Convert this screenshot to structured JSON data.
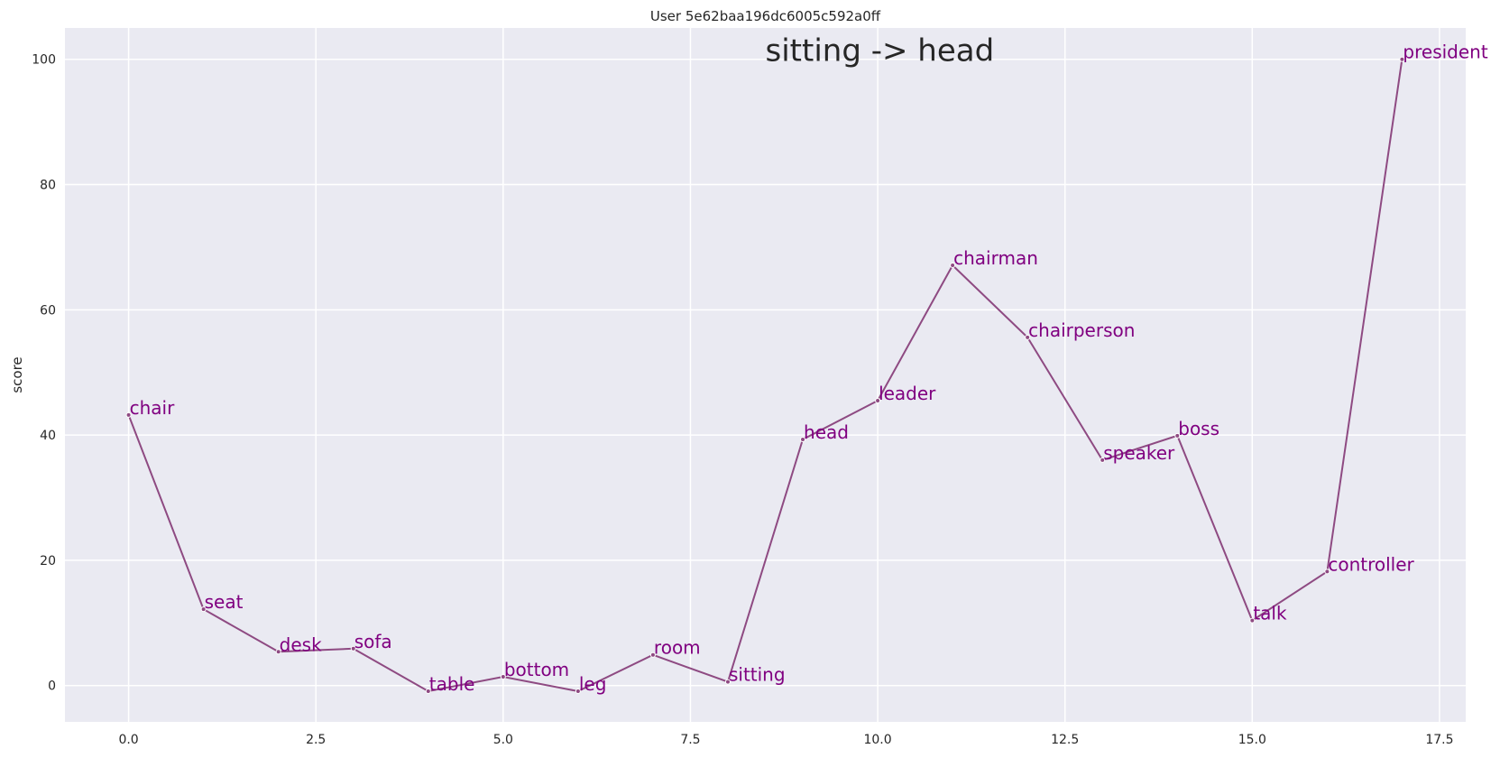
{
  "chart_data": {
    "type": "line",
    "title": "User 5e62baa196dc6005c592a0ff",
    "annotation": "sitting -> head",
    "xlabel": "",
    "ylabel": "score",
    "xlim": [
      -0.85,
      17.85
    ],
    "ylim": [
      -5.8,
      105.0
    ],
    "xticks": [
      0.0,
      2.5,
      5.0,
      7.5,
      10.0,
      12.5,
      15.0,
      17.5
    ],
    "xtick_labels": [
      "0.0",
      "2.5",
      "5.0",
      "7.5",
      "10.0",
      "12.5",
      "15.0",
      "17.5"
    ],
    "yticks": [
      0,
      20,
      40,
      60,
      80,
      100
    ],
    "ytick_labels": [
      "0",
      "20",
      "40",
      "60",
      "80",
      "100"
    ],
    "grid": true,
    "line_color": "#8e4a82",
    "label_color": "#800080",
    "background": "#eaeaf2",
    "points": [
      {
        "x": 0,
        "y": 43.2,
        "label": "chair"
      },
      {
        "x": 1,
        "y": 12.2,
        "label": "seat"
      },
      {
        "x": 2,
        "y": 5.4,
        "label": "desk"
      },
      {
        "x": 3,
        "y": 5.9,
        "label": "sofa"
      },
      {
        "x": 4,
        "y": -0.9,
        "label": "table"
      },
      {
        "x": 5,
        "y": 1.4,
        "label": "bottom"
      },
      {
        "x": 6,
        "y": -0.9,
        "label": "leg"
      },
      {
        "x": 7,
        "y": 4.9,
        "label": "room"
      },
      {
        "x": 8,
        "y": 0.6,
        "label": "sitting"
      },
      {
        "x": 9,
        "y": 39.3,
        "label": "head"
      },
      {
        "x": 10,
        "y": 45.5,
        "label": "leader"
      },
      {
        "x": 11,
        "y": 67.1,
        "label": "chairman"
      },
      {
        "x": 12,
        "y": 55.6,
        "label": "chairperson"
      },
      {
        "x": 13,
        "y": 36.0,
        "label": "speaker"
      },
      {
        "x": 14,
        "y": 39.9,
        "label": "boss"
      },
      {
        "x": 15,
        "y": 10.4,
        "label": "talk"
      },
      {
        "x": 16,
        "y": 18.2,
        "label": "controller"
      },
      {
        "x": 17,
        "y": 100.0,
        "label": "president"
      }
    ]
  }
}
